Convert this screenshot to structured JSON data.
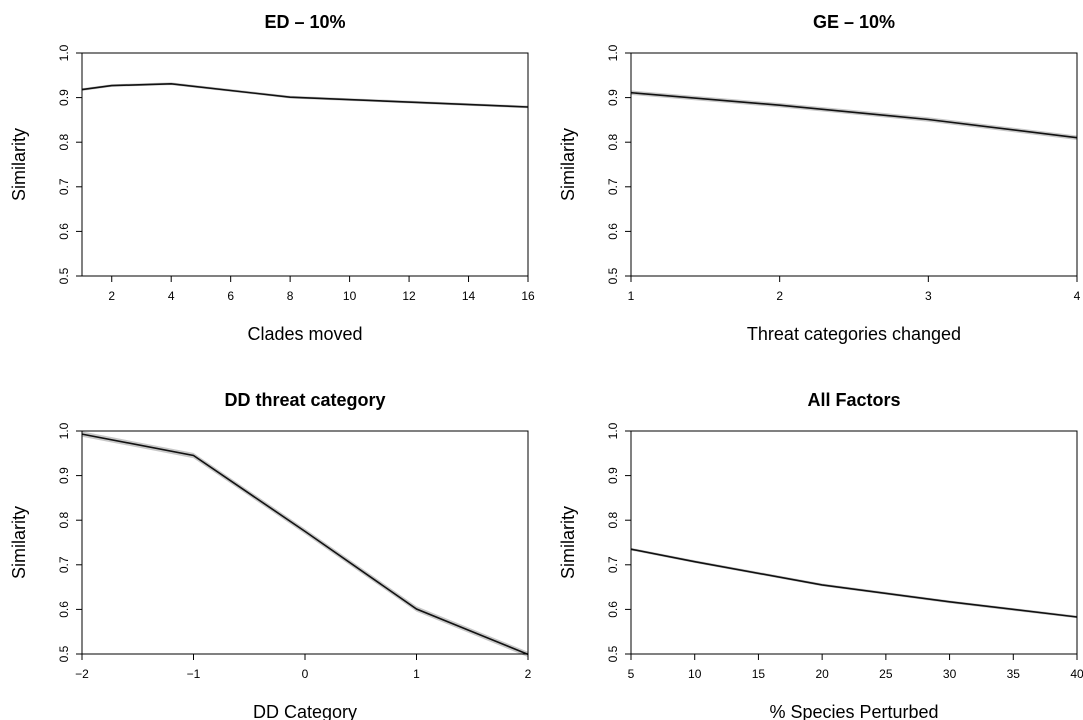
{
  "chart_data": [
    {
      "type": "line",
      "title": "ED – 10%",
      "xlabel": "Clades moved",
      "ylabel": "Similarity",
      "xlim": [
        1,
        16
      ],
      "ylim": [
        0.5,
        1.0
      ],
      "xticks": [
        2,
        4,
        6,
        8,
        10,
        12,
        14,
        16
      ],
      "yticks": [
        0.5,
        0.6,
        0.7,
        0.8,
        0.9,
        1.0
      ],
      "x": [
        1,
        2,
        4,
        8,
        16
      ],
      "y": [
        0.918,
        0.927,
        0.931,
        0.901,
        0.879
      ],
      "band": 0.003
    },
    {
      "type": "line",
      "title": "GE – 10%",
      "xlabel": "Threat categories changed",
      "ylabel": "Similarity",
      "xlim": [
        1,
        4
      ],
      "ylim": [
        0.5,
        1.0
      ],
      "xticks": [
        1,
        2,
        3,
        4
      ],
      "yticks": [
        0.5,
        0.6,
        0.7,
        0.8,
        0.9,
        1.0
      ],
      "x": [
        1,
        2,
        3,
        4
      ],
      "y": [
        0.911,
        0.883,
        0.851,
        0.81
      ],
      "band": 0.005
    },
    {
      "type": "line",
      "title": "DD threat category",
      "xlabel": "DD Category",
      "ylabel": "Similarity",
      "xlim": [
        -2,
        2
      ],
      "ylim": [
        0.5,
        1.0
      ],
      "xticks": [
        -2,
        -1,
        0,
        1,
        2
      ],
      "xtick_labels": [
        "−2",
        "−1",
        "0",
        "1",
        "2"
      ],
      "yticks": [
        0.5,
        0.6,
        0.7,
        0.8,
        0.9,
        1.0
      ],
      "x": [
        -2,
        -1,
        0,
        1,
        2
      ],
      "y": [
        0.993,
        0.945,
        0.775,
        0.601,
        0.499
      ],
      "band": 0.006
    },
    {
      "type": "line",
      "title": "All Factors",
      "xlabel": "% Species Perturbed",
      "ylabel": "Similarity",
      "xlim": [
        5,
        40
      ],
      "ylim": [
        0.5,
        1.0
      ],
      "xticks": [
        5,
        10,
        15,
        20,
        25,
        30,
        35,
        40
      ],
      "yticks": [
        0.5,
        0.6,
        0.7,
        0.8,
        0.9,
        1.0
      ],
      "x": [
        5,
        10,
        20,
        30,
        40
      ],
      "y": [
        0.735,
        0.707,
        0.655,
        0.617,
        0.583
      ],
      "band": 0.003
    }
  ]
}
